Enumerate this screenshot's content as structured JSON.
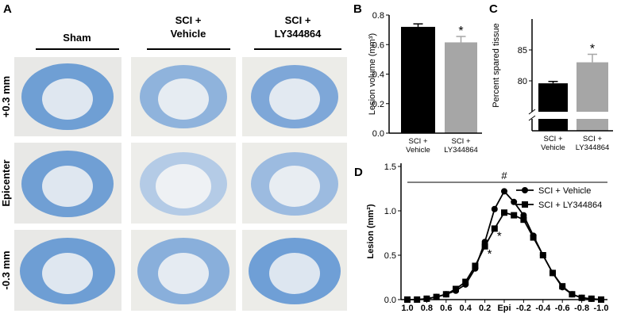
{
  "panel_a": {
    "label": "A",
    "columns": [
      [
        "Sham"
      ],
      [
        "SCI +",
        "Vehicle"
      ],
      [
        "SCI +",
        "LY344864"
      ]
    ],
    "rows": [
      "+0.3 mm",
      "Epicenter",
      "-0.3 mm"
    ]
  },
  "chart_data": [
    {
      "type": "bar",
      "label": "B",
      "ylabel": "Lesion volume (mm³)",
      "categories": [
        [
          "SCI +",
          "Vehicle"
        ],
        [
          "SCI +",
          "LY344864"
        ]
      ],
      "values": [
        0.72,
        0.615
      ],
      "errors": [
        0.02,
        0.04
      ],
      "colors": [
        "#000000",
        "#a6a6a6"
      ],
      "ylim": [
        0,
        0.8
      ],
      "yticks": [
        {
          "value": 0,
          "label": "0.0"
        },
        0.2,
        0.4,
        0.6,
        0.8
      ],
      "annotations": [
        "",
        "*"
      ]
    },
    {
      "type": "broken-bar",
      "label": "C",
      "ylabel": "Percent spared tissue",
      "categories": [
        [
          "SCI +",
          "Vehicle"
        ],
        [
          "SCI +",
          "LY344864"
        ]
      ],
      "values": [
        79.6,
        83
      ],
      "errors": [
        0.3,
        1.3
      ],
      "colors": [
        "#000000",
        "#a6a6a6"
      ],
      "ylim": [
        75,
        90
      ],
      "yticks": [
        80,
        85
      ],
      "annotations": [
        "",
        "*"
      ]
    },
    {
      "type": "line",
      "label": "D",
      "ylabel": "Lesion (mm²)",
      "x": [
        1.0,
        0.9,
        0.8,
        0.7,
        0.6,
        0.5,
        0.4,
        0.3,
        0.2,
        0.1,
        0,
        -0.1,
        -0.2,
        -0.3,
        -0.4,
        -0.5,
        -0.6,
        -0.7,
        -0.8,
        -0.9,
        -1.0
      ],
      "xlim": [
        1.0,
        -1.0
      ],
      "xticks": [
        {
          "value": 1,
          "label": "1.0"
        },
        0.8,
        0.6,
        0.4,
        0.2,
        {
          "value": 0,
          "label": "Epi"
        },
        -0.2,
        -0.4,
        -0.6,
        -0.8,
        {
          "value": -1,
          "label": "-1.0"
        }
      ],
      "ylim": [
        0,
        1.5
      ],
      "yticks": [
        {
          "value": 0,
          "label": "0.0"
        },
        0.5,
        {
          "value": 1,
          "label": "1.0"
        },
        1.5
      ],
      "series": [
        {
          "name": "SCI + Vehicle",
          "marker": "circle",
          "color": "#000000",
          "values": [
            0,
            0,
            0.01,
            0.03,
            0.06,
            0.1,
            0.17,
            0.35,
            0.65,
            1.02,
            1.22,
            1.1,
            0.95,
            0.72,
            0.5,
            0.3,
            0.14,
            0.06,
            0.02,
            0.01,
            0
          ]
        },
        {
          "name": "SCI + LY344864",
          "marker": "square",
          "color": "#000000",
          "values": [
            0,
            0,
            0.01,
            0.03,
            0.06,
            0.12,
            0.2,
            0.38,
            0.6,
            0.8,
            0.98,
            0.95,
            0.9,
            0.7,
            0.5,
            0.3,
            0.15,
            0.06,
            0.02,
            0.01,
            0
          ]
        }
      ],
      "annotations": [
        {
          "text": "#"
        },
        {
          "text": "*",
          "x": 0.1
        },
        {
          "text": "*",
          "x": 0.2
        }
      ]
    }
  ]
}
